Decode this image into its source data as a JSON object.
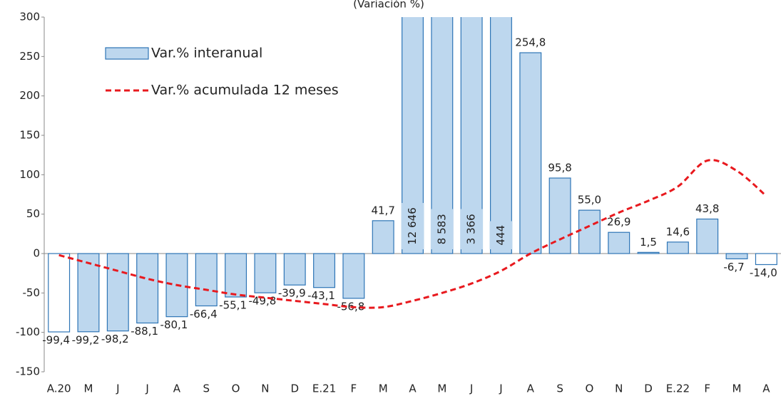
{
  "chart_data": {
    "type": "bar_line",
    "title": "(Variación %)",
    "categories": [
      "A.20",
      "M",
      "J",
      "J",
      "A",
      "S",
      "O",
      "N",
      "D",
      "E.21",
      "F",
      "M",
      "A",
      "M",
      "J",
      "J",
      "A",
      "S",
      "O",
      "N",
      "D",
      "E.22",
      "F",
      "M",
      "A"
    ],
    "series": [
      {
        "name": "Var.% interanual",
        "type": "bar",
        "color": "#bdd7ee",
        "border": "#2e75b6",
        "bar_colors": [
          "#ffffff",
          "#bdd7ee",
          "#bdd7ee",
          "#bdd7ee",
          "#bdd7ee",
          "#bdd7ee",
          "#bdd7ee",
          "#bdd7ee",
          "#bdd7ee",
          "#bdd7ee",
          "#bdd7ee",
          "#bdd7ee",
          "#bdd7ee",
          "#bdd7ee",
          "#bdd7ee",
          "#bdd7ee",
          "#bdd7ee",
          "#bdd7ee",
          "#bdd7ee",
          "#bdd7ee",
          "#bdd7ee",
          "#bdd7ee",
          "#bdd7ee",
          "#bdd7ee",
          "#ffffff"
        ],
        "values": [
          -99.4,
          -99.2,
          -98.2,
          -88.1,
          -80.1,
          -66.4,
          -55.1,
          -49.8,
          -39.9,
          -43.1,
          -56.8,
          41.7,
          12646,
          8583,
          3366,
          444,
          254.8,
          95.8,
          55.0,
          26.9,
          1.5,
          14.6,
          43.8,
          -6.7,
          -14.0
        ],
        "value_labels": [
          "-99,4",
          "-99,2",
          "-98,2",
          "-88,1",
          "-80,1",
          "-66,4",
          "-55,1",
          "-49,8",
          "-39,9",
          "-43,1",
          "-56,8",
          "41,7",
          "12 646",
          "8 583",
          "3 366",
          "444",
          "254,8",
          "95,8",
          "55,0",
          "26,9",
          "1,5",
          "14,6",
          "43,8",
          "-6,7",
          "-14,0"
        ]
      },
      {
        "name": "Var.% acumulada 12 meses",
        "type": "line",
        "color": "#e8191e",
        "dashed": true,
        "values": [
          -2,
          -12,
          -22,
          -32,
          -40,
          -46,
          -52,
          -56,
          -60,
          -64,
          -68,
          -68,
          -60,
          -50,
          -38,
          -22,
          0,
          18,
          35,
          52,
          67,
          85,
          118,
          105,
          73
        ]
      }
    ],
    "ylim": [
      -150,
      300
    ],
    "yticks": [
      -150,
      -100,
      -50,
      0,
      50,
      100,
      150,
      200,
      250,
      300
    ]
  }
}
